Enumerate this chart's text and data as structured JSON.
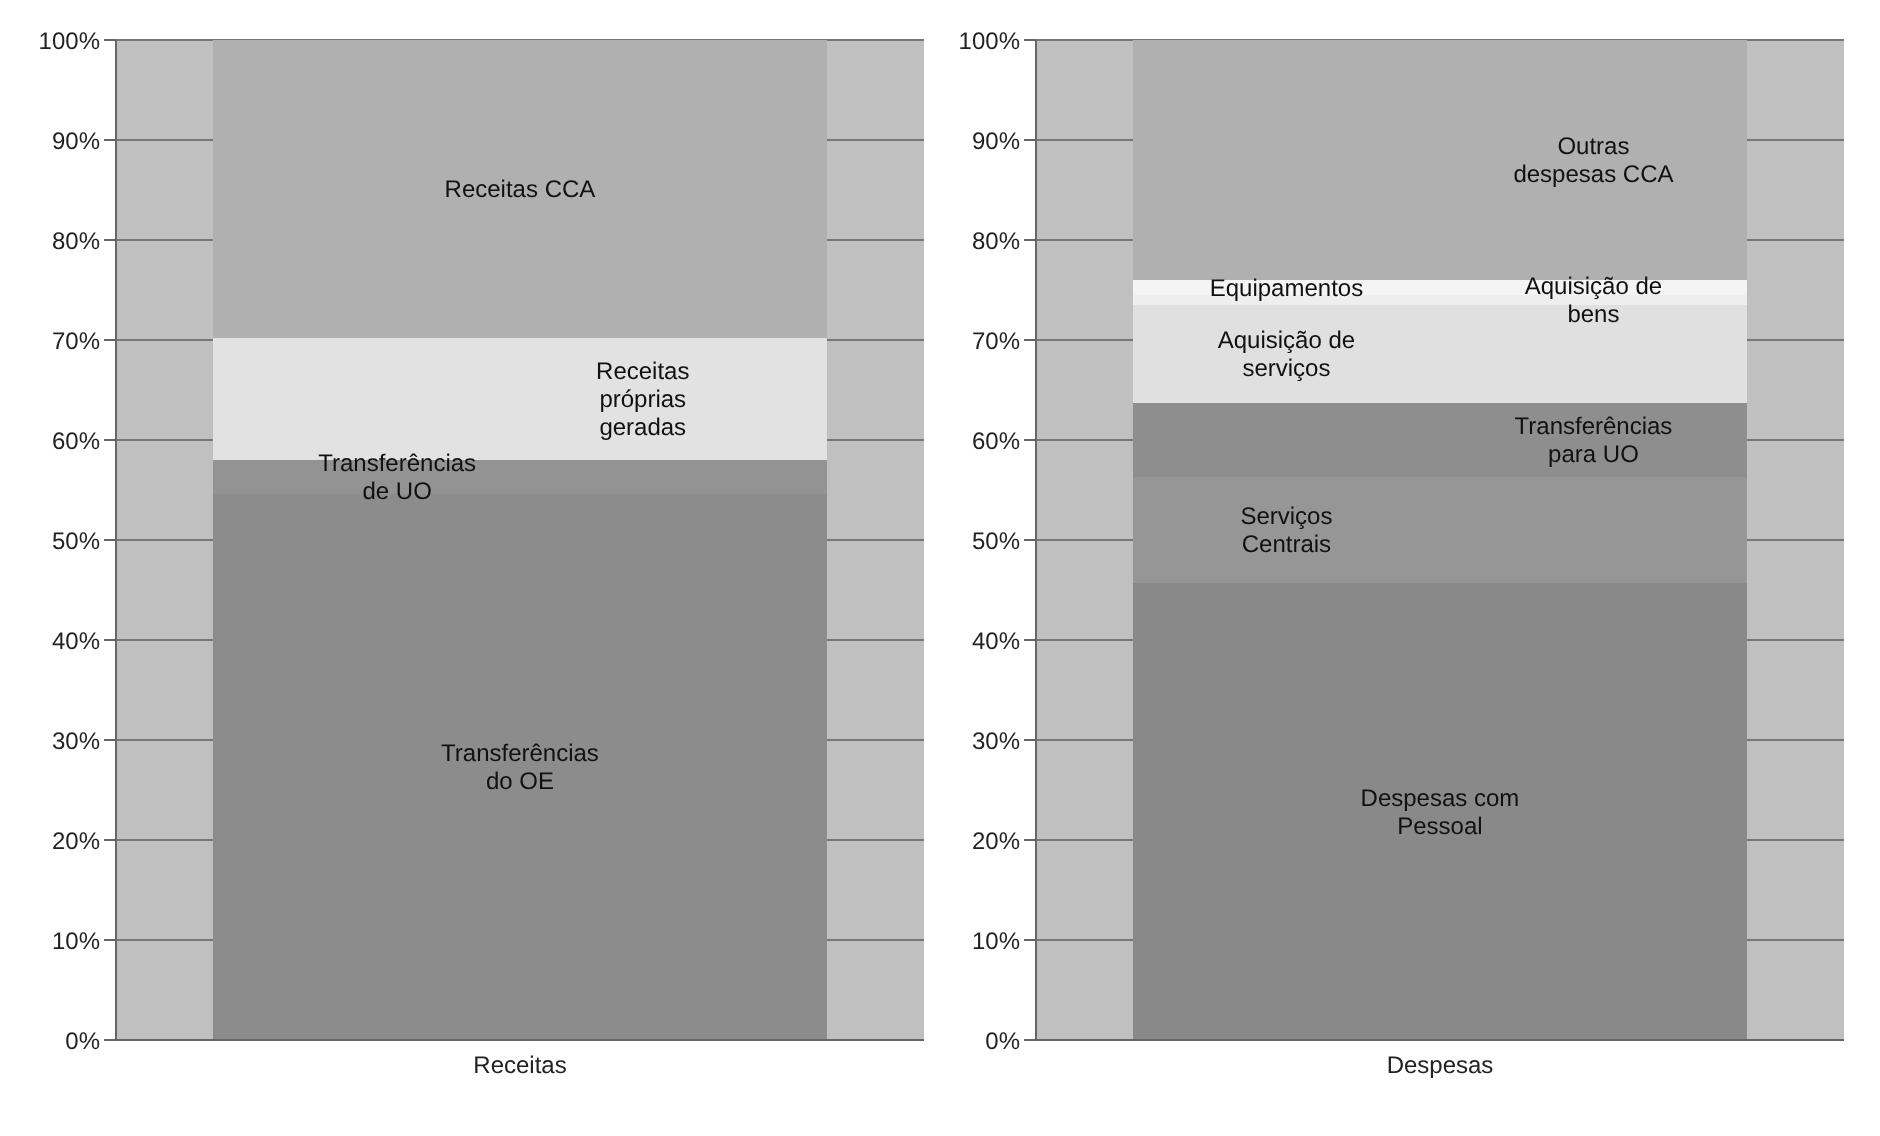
{
  "chart_data": [
    {
      "type": "bar",
      "stacked": true,
      "categories": [
        "Receitas"
      ],
      "ylim": [
        0,
        100
      ],
      "yticks": [
        {
          "value": 0,
          "label": "0%"
        },
        {
          "value": 10,
          "label": "10%"
        },
        {
          "value": 20,
          "label": "20%"
        },
        {
          "value": 30,
          "label": "30%"
        },
        {
          "value": 40,
          "label": "40%"
        },
        {
          "value": 50,
          "label": "50%"
        },
        {
          "value": 60,
          "label": "60%"
        },
        {
          "value": 70,
          "label": "70%"
        },
        {
          "value": 80,
          "label": "80%"
        },
        {
          "value": 90,
          "label": "90%"
        },
        {
          "value": 100,
          "label": "100%"
        }
      ],
      "grid": "y",
      "legend": false,
      "series": [
        {
          "name": "Transferências do OE",
          "color": "#8c8c8c",
          "values": [
            54.6
          ]
        },
        {
          "name": "Transferências de UO",
          "color": "#939393",
          "values": [
            3.4
          ]
        },
        {
          "name": "Receitas próprias geradas",
          "color": "#e2e2e2",
          "values": [
            12.2
          ]
        },
        {
          "name": "Receitas CCA",
          "color": "#b0b0b0",
          "values": [
            29.8
          ]
        }
      ]
    },
    {
      "type": "bar",
      "stacked": true,
      "categories": [
        "Despesas"
      ],
      "ylim": [
        0,
        100
      ],
      "yticks": [
        {
          "value": 0,
          "label": "0%"
        },
        {
          "value": 10,
          "label": "10%"
        },
        {
          "value": 20,
          "label": "20%"
        },
        {
          "value": 30,
          "label": "30%"
        },
        {
          "value": 40,
          "label": "40%"
        },
        {
          "value": 50,
          "label": "50%"
        },
        {
          "value": 60,
          "label": "60%"
        },
        {
          "value": 70,
          "label": "70%"
        },
        {
          "value": 80,
          "label": "80%"
        },
        {
          "value": 90,
          "label": "90%"
        },
        {
          "value": 100,
          "label": "100%"
        }
      ],
      "grid": "y",
      "legend": false,
      "series": [
        {
          "name": "Despesas com Pessoal",
          "color": "#898989",
          "values": [
            45.7
          ]
        },
        {
          "name": "Serviços Centrais",
          "color": "#969696",
          "values": [
            10.6
          ]
        },
        {
          "name": "Transferências para UO",
          "color": "#8e8e8e",
          "values": [
            7.4
          ]
        },
        {
          "name": "Aquisição de serviços",
          "color": "#e0e0e0",
          "values": [
            9.8
          ]
        },
        {
          "name": "Aquisição de bens",
          "color": "#eeeeee",
          "values": [
            1.0
          ]
        },
        {
          "name": "Equipamentos",
          "color": "#f4f4f4",
          "values": [
            1.5
          ]
        },
        {
          "name": "Outras despesas CCA",
          "color": "#b0b0b0",
          "values": [
            24.0
          ]
        }
      ]
    }
  ]
}
